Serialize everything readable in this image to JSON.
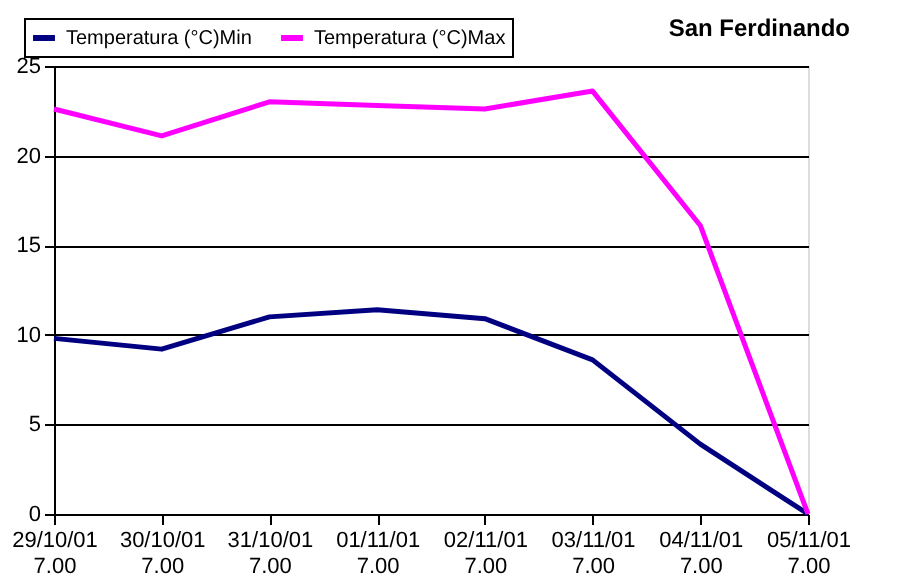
{
  "chart_data": {
    "type": "line",
    "title": "San Ferdinando",
    "categories": [
      "29/10/01 7.00",
      "30/10/01 7.00",
      "31/10/01 7.00",
      "01/11/01 7.00",
      "02/11/01 7.00",
      "03/11/01 7.00",
      "04/11/01 7.00",
      "05/11/01 7.00"
    ],
    "series": [
      {
        "name": "Temperatura (°C)Min",
        "color": "#000080",
        "values": [
          9.8,
          9.2,
          11.0,
          11.4,
          10.9,
          8.6,
          3.9,
          0.0
        ]
      },
      {
        "name": "Temperatura (°C)Max",
        "color": "#ff00ff",
        "values": [
          22.6,
          21.1,
          23.0,
          22.8,
          22.6,
          23.6,
          16.1,
          0.0
        ]
      }
    ],
    "ylim": [
      0,
      25
    ],
    "yticks": [
      0,
      5,
      10,
      15,
      20,
      25
    ],
    "grid": "y",
    "legend": "top left",
    "marker": "none",
    "line_style": "solid"
  }
}
